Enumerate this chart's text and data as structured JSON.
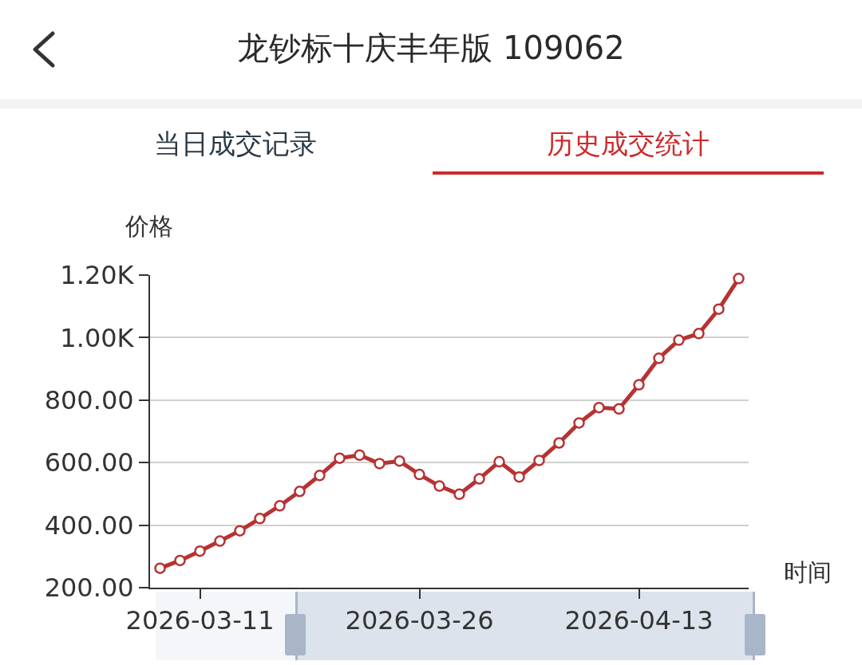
{
  "chart_data": {
    "type": "line",
    "title": "龙钞标十庆丰年版 109062",
    "annotations": [
      "当日成交记录",
      "历史成交统计"
    ],
    "xlabel": "时间",
    "ylabel": "价格",
    "categories": [
      null,
      null,
      "2026-03-11",
      null,
      null,
      null,
      null,
      null,
      null,
      null,
      null,
      null,
      null,
      "2026-03-26",
      null,
      null,
      null,
      null,
      null,
      null,
      null,
      null,
      null,
      null,
      "2026-04-13",
      null,
      null,
      null,
      null,
      null
    ],
    "series": [
      {
        "color": "#b83232",
        "values": [
          262,
          287,
          317,
          349,
          382,
          421,
          462,
          508,
          559,
          614,
          624,
          597,
          605,
          562,
          525,
          499,
          548,
          603,
          554,
          607,
          663,
          727,
          776,
          772,
          849,
          934,
          992,
          1013,
          1091,
          1189
        ]
      }
    ],
    "ylim": [
      200,
      1200
    ],
    "yticks": [
      {
        "value": 200,
        "label": "200.00"
      },
      {
        "value": 400,
        "label": "400.00"
      },
      {
        "value": 600,
        "label": "600.00"
      },
      {
        "value": 800,
        "label": "800.00"
      },
      {
        "value": 1000,
        "label": "1.00K"
      },
      {
        "value": 1200,
        "label": "1.20K"
      }
    ],
    "grid": "y",
    "marker": "circle",
    "line_style": "solid"
  }
}
